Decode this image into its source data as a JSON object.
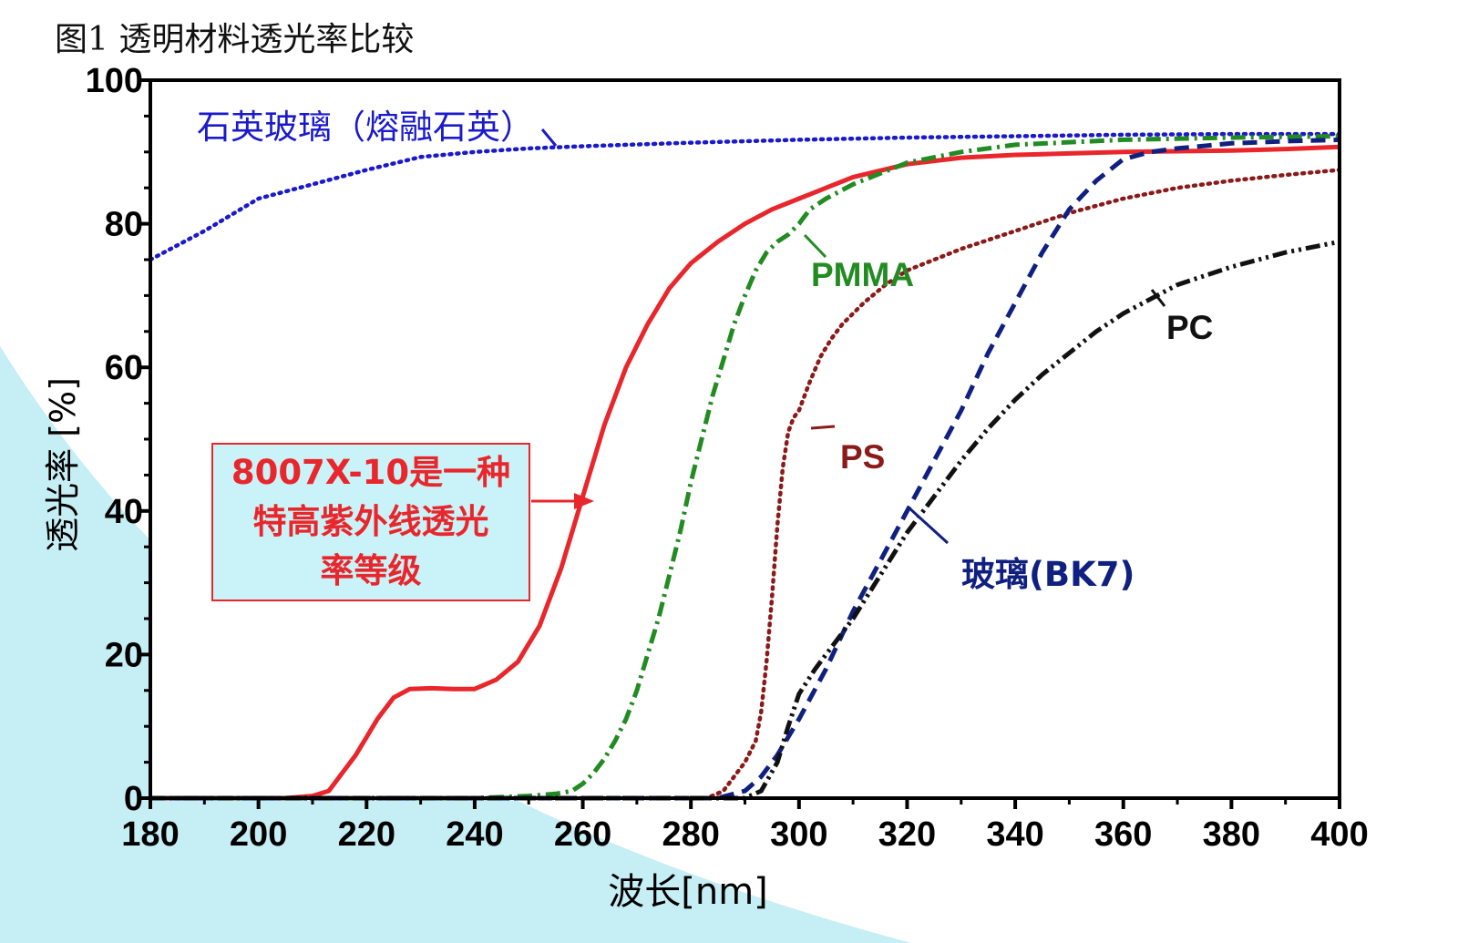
{
  "figure_title": "图1 透明材料透光率比较",
  "callout": {
    "lines": [
      "8007X-10是一种",
      "特高紫外线透光",
      "率等级"
    ],
    "border_color": "#e8262b",
    "fill_color": "#c9f3f8"
  },
  "colors": {
    "background_shape": "#c5eef5",
    "axis": "#000000"
  },
  "chart_data": {
    "type": "line",
    "xlabel": "波长[nm]",
    "ylabel": "透光率 [%]",
    "xlim": [
      180,
      400
    ],
    "ylim": [
      0,
      100
    ],
    "xticks": [
      180,
      200,
      220,
      240,
      260,
      280,
      300,
      320,
      340,
      360,
      380,
      400
    ],
    "yticks": [
      0,
      20,
      40,
      60,
      80,
      100
    ],
    "grid": false,
    "series": [
      {
        "name": "石英玻璃（熔融石英）",
        "color": "#1a1acc",
        "style": "dotted",
        "x": [
          180,
          190,
          200,
          210,
          220,
          230,
          240,
          250,
          260,
          280,
          300,
          320,
          340,
          360,
          380,
          400
        ],
        "y": [
          75,
          79,
          83.5,
          85.5,
          87.5,
          89.3,
          90,
          90.5,
          90.8,
          91.3,
          91.7,
          92,
          92.2,
          92.4,
          92.5,
          92.5
        ]
      },
      {
        "name": "8007X-10",
        "color": "#e8262b",
        "style": "solid",
        "x": [
          180,
          205,
          210,
          213,
          215,
          218,
          220,
          222,
          225,
          228,
          232,
          236,
          240,
          244,
          248,
          252,
          256,
          260,
          264,
          268,
          272,
          276,
          280,
          285,
          290,
          295,
          300,
          305,
          310,
          320,
          330,
          340,
          350,
          360,
          370,
          380,
          390,
          400
        ],
        "y": [
          0,
          0,
          0.3,
          1,
          3,
          6,
          8.5,
          11,
          14,
          15.2,
          15.3,
          15.2,
          15.2,
          16.5,
          19,
          24,
          32,
          42,
          52,
          60,
          66,
          71,
          74.5,
          77.5,
          80,
          82,
          83.5,
          85,
          86.5,
          88.3,
          89.2,
          89.6,
          89.8,
          90,
          90.1,
          90.2,
          90.4,
          90.7
        ]
      },
      {
        "name": "PMMA",
        "color": "#228b22",
        "style": "dashdot",
        "x": [
          180,
          240,
          250,
          255,
          258,
          260,
          262,
          264,
          266,
          268,
          270,
          272,
          274,
          276,
          278,
          280,
          282,
          284,
          286,
          288,
          290,
          292,
          294,
          296,
          298,
          300,
          302,
          305,
          310,
          320,
          330,
          340,
          360,
          380,
          400
        ],
        "y": [
          0,
          0,
          0.3,
          0.6,
          1,
          2,
          3.5,
          5.5,
          8,
          11,
          15,
          20,
          25,
          31,
          37,
          44,
          50,
          56,
          61,
          66,
          70,
          73.5,
          76,
          77.5,
          78.5,
          80,
          82,
          83.5,
          85.5,
          88.5,
          90,
          91,
          91.7,
          92,
          92.2
        ]
      },
      {
        "name": "PS",
        "color": "#8b1a1a",
        "style": "dotted",
        "x": [
          180,
          283,
          286,
          288,
          290,
          292,
          293,
          294,
          295,
          296,
          297,
          298,
          299,
          300,
          302,
          304,
          306,
          308,
          312,
          316,
          320,
          330,
          340,
          350,
          360,
          370,
          380,
          390,
          400
        ],
        "y": [
          0,
          0,
          1,
          3,
          5,
          8,
          12,
          19,
          28,
          38,
          46,
          51,
          53,
          54,
          58,
          61.5,
          64,
          66,
          69,
          71.5,
          73.5,
          76.5,
          79,
          81.5,
          83.5,
          85,
          86,
          86.8,
          87.5
        ]
      },
      {
        "name": "玻璃（BK7）",
        "color": "#102080",
        "style": "dashed",
        "x": [
          180,
          285,
          290,
          293,
          296,
          300,
          305,
          310,
          315,
          320,
          325,
          330,
          335,
          340,
          345,
          350,
          355,
          360,
          365,
          370,
          380,
          390,
          400
        ],
        "y": [
          0,
          0,
          1,
          3,
          6,
          11,
          18,
          26,
          33,
          40,
          47,
          54,
          62,
          69,
          76,
          82,
          86,
          89,
          90,
          90.5,
          91.2,
          91.5,
          91.7
        ]
      },
      {
        "name": "PC",
        "color": "#111111",
        "style": "dashdotdot",
        "x": [
          180,
          290,
          293,
          296,
          298,
          300,
          303,
          306,
          310,
          315,
          320,
          325,
          330,
          335,
          340,
          345,
          350,
          355,
          360,
          365,
          370,
          380,
          390,
          400
        ],
        "y": [
          0,
          0,
          1,
          5,
          10,
          14.5,
          18,
          21,
          25,
          31,
          37,
          42,
          47,
          51.5,
          55.5,
          59,
          62,
          65,
          67.5,
          69.5,
          71.5,
          74,
          76,
          77.5
        ]
      }
    ],
    "annotations": [
      {
        "text": "石英玻璃（熔融石英）",
        "color": "#1a1acc"
      },
      {
        "text": "PMMA",
        "color": "#228b22"
      },
      {
        "text": "PS",
        "color": "#8b1a1a"
      },
      {
        "text": "玻璃(BK7)",
        "color": "#102080"
      },
      {
        "text": "PC",
        "color": "#111111"
      }
    ]
  }
}
